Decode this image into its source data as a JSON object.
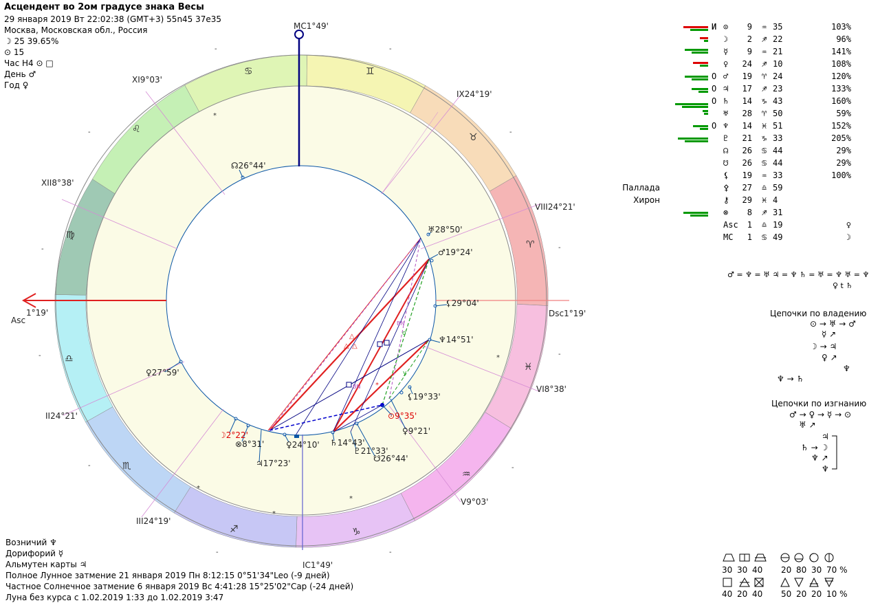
{
  "header": {
    "title": "Асцендент во 2ом градусе знака Весы",
    "date_line": "29 января 2019  Вт  22:02:38 (GMT+3) 55n45  37e35",
    "place": "Москва, Московская обл., Россия",
    "moon_line": "☽  25 39.65%",
    "sun_line": "⊙  15",
    "hour_line": "Час Н4 ⊙ □",
    "day_line": "День ♂",
    "year_line": "Год ♀"
  },
  "chart": {
    "mc_label": "MC1°49'",
    "ic_label": "IC1°49'",
    "asc_label": "Asc",
    "asc_deg": "1°19'",
    "dsc_label": "Dsc1°19'",
    "cusps": [
      {
        "name": "XI",
        "deg": "9°03'"
      },
      {
        "name": "XII",
        "deg": "8°38'"
      },
      {
        "name": "II",
        "deg": "24°21'"
      },
      {
        "name": "III",
        "deg": "24°19'"
      },
      {
        "name": "V",
        "deg": "9°03'"
      },
      {
        "name": "VI",
        "deg": "8°38'"
      },
      {
        "name": "VIII",
        "deg": "24°21'"
      },
      {
        "name": "IX",
        "deg": "24°19'"
      }
    ],
    "signs": [
      "♋",
      "♊",
      "♉",
      "♈",
      "♓",
      "♒",
      "♑",
      "♐",
      "♏",
      "♎",
      "♍",
      "♌"
    ],
    "planets": [
      {
        "glyph": "♅",
        "deg": "28°50'"
      },
      {
        "glyph": "♂",
        "deg": "19°24'"
      },
      {
        "glyph": "⚸",
        "deg": "29°04'"
      },
      {
        "glyph": "♆",
        "deg": "14°51'"
      },
      {
        "glyph": "⚸",
        "deg": "19°33'"
      },
      {
        "glyph": "⊙",
        "deg": "9°35'"
      },
      {
        "glyph": "♀",
        "deg": "9°21'"
      },
      {
        "glyph": "☊",
        "deg": "26°44'"
      },
      {
        "glyph": "♀",
        "deg": "27°59'"
      },
      {
        "glyph": "☽",
        "deg": "2°22'"
      },
      {
        "glyph": "⊗",
        "deg": "8°31'"
      },
      {
        "glyph": "♃",
        "deg": "17°23'"
      },
      {
        "glyph": "♀",
        "deg": "24°10'"
      },
      {
        "glyph": "♄",
        "deg": "14°43'"
      },
      {
        "glyph": "♇",
        "deg": "21°33'"
      },
      {
        "glyph": "☋",
        "deg": "26°44'"
      }
    ]
  },
  "planet_table": [
    {
      "pre": "И",
      "glyph": "⊙",
      "deg": "9",
      "sign": "♒",
      "min": "35",
      "pct": "103%"
    },
    {
      "pre": "",
      "glyph": "☽",
      "deg": "2",
      "sign": "♐",
      "min": "22",
      "pct": "96%"
    },
    {
      "pre": "",
      "glyph": "☿",
      "deg": "9",
      "sign": "♒",
      "min": "21",
      "pct": "141%"
    },
    {
      "pre": "",
      "glyph": "♀",
      "deg": "24",
      "sign": "♐",
      "min": "10",
      "pct": "108%"
    },
    {
      "pre": "О",
      "glyph": "♂",
      "deg": "19",
      "sign": "♈",
      "min": "24",
      "pct": "120%"
    },
    {
      "pre": "О",
      "glyph": "♃",
      "deg": "17",
      "sign": "♐",
      "min": "23",
      "pct": "133%"
    },
    {
      "pre": "О",
      "glyph": "♄",
      "deg": "14",
      "sign": "♑",
      "min": "43",
      "pct": "160%"
    },
    {
      "pre": "",
      "glyph": "♅",
      "deg": "28",
      "sign": "♈",
      "min": "50",
      "pct": "59%"
    },
    {
      "pre": "О",
      "glyph": "♆",
      "deg": "14",
      "sign": "♓",
      "min": "51",
      "pct": "152%"
    },
    {
      "pre": "",
      "glyph": "♇",
      "deg": "21",
      "sign": "♑",
      "min": "33",
      "pct": "205%"
    },
    {
      "pre": "",
      "glyph": "☊",
      "deg": "26",
      "sign": "♋",
      "min": "44",
      "pct": "29%"
    },
    {
      "pre": "",
      "glyph": "☋",
      "deg": "26",
      "sign": "♋",
      "min": "44",
      "pct": "29%"
    },
    {
      "pre": "",
      "glyph": "⚸",
      "deg": "19",
      "sign": "♒",
      "min": "33",
      "pct": "100%"
    },
    {
      "pre": "Паллада",
      "glyph": "⚴",
      "deg": "27",
      "sign": "♎",
      "min": "59",
      "pct": ""
    },
    {
      "pre": "Хирон",
      "glyph": "⚷",
      "deg": "29",
      "sign": "♓",
      "min": "4",
      "pct": ""
    },
    {
      "pre": "",
      "glyph": "⊗",
      "deg": "8",
      "sign": "♐",
      "min": "31",
      "pct": ""
    },
    {
      "pre": "",
      "glyph": "Asc",
      "deg": "1",
      "sign": "♎",
      "min": "19",
      "pct": "♀"
    },
    {
      "pre": "",
      "glyph": "MC",
      "deg": "1",
      "sign": "♋",
      "min": "49",
      "pct": "☽"
    }
  ],
  "right": {
    "aspects_line1": "♂ = ♆ = ♅  ♃ = ♆  ♄ = ♅ = ♆ ♅ = ♆",
    "aspects_line2": "♀ t ♄",
    "chains_owner_title": "Цепочки по владению",
    "chains_owner": [
      "⊙ → ♅ → ♂",
      "☿ ↗",
      "☽ → ♃",
      "♀ ↗",
      "♆",
      "♆ → ♄"
    ],
    "chains_exile_title": "Цепочки по изгнанию",
    "chains_exile": [
      "♂ → ♀ → ☿ → ⊙",
      "♅ ↗",
      "♃",
      "♄ → ☽",
      "♆ ↗",
      "♆"
    ]
  },
  "footer": {
    "vozn": "Возничий  ♆",
    "dorif": "Дорифорий  ☿",
    "almuten": "Альмутен карты  ♃",
    "eclipse1": "Полное Лунное затмение 21 января 2019 Пн  8:12:15  0°51'34\"Leo (-9 дней)",
    "eclipse2": "Частное Солнечное затмение 6 января 2019 Вс  4:41:28 15°25'02\"Cap (-24 дней)",
    "moon_void": "Луна без курса с 1.02.2019  1:33 до 1.02.2019  3:47"
  },
  "stats": {
    "row1": [
      "30",
      "30",
      "40",
      "20",
      "80",
      "30",
      "70 %"
    ],
    "row2": [
      "40",
      "20",
      "40",
      "50",
      "20",
      "20",
      "10 %"
    ]
  },
  "colors": {
    "red": "#dd0000",
    "navy": "#000080",
    "green": "#009900"
  }
}
